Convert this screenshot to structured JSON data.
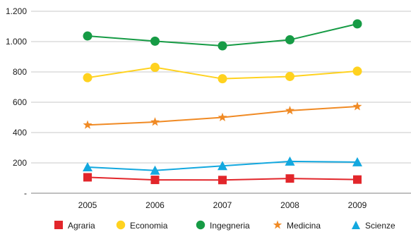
{
  "chart_data": {
    "type": "line",
    "title": "",
    "xlabel": "",
    "ylabel": "",
    "categories": [
      "2005",
      "2006",
      "2007",
      "2008",
      "2009"
    ],
    "ylim": [
      0,
      1200
    ],
    "yticks": [
      {
        "value": 0,
        "label": "-"
      },
      {
        "value": 200,
        "label": "200"
      },
      {
        "value": 400,
        "label": "400"
      },
      {
        "value": 600,
        "label": "600"
      },
      {
        "value": 800,
        "label": "800"
      },
      {
        "value": 1000,
        "label": "1.000"
      },
      {
        "value": 1200,
        "label": "1.200"
      }
    ],
    "grid": true,
    "legend_position": "bottom",
    "series": [
      {
        "name": "Agraria",
        "values": [
          105,
          88,
          87,
          97,
          90
        ],
        "color": "#e2262b",
        "marker": "square"
      },
      {
        "name": "Economia",
        "values": [
          762,
          830,
          755,
          770,
          805
        ],
        "color": "#ffd21f",
        "marker": "circle"
      },
      {
        "name": "Ingegneria",
        "values": [
          1037,
          1003,
          972,
          1012,
          1117
        ],
        "color": "#169b45",
        "marker": "circle"
      },
      {
        "name": "Medicina",
        "values": [
          450,
          470,
          500,
          545,
          572
        ],
        "color": "#f08a24",
        "marker": "star"
      },
      {
        "name": "Scienze",
        "values": [
          172,
          150,
          180,
          210,
          205
        ],
        "color": "#13a8df",
        "marker": "triangle"
      }
    ]
  },
  "colors": {
    "gridline": "#c9c9c9",
    "axis": "#7f7f7f",
    "text": "#1a1a1a"
  }
}
